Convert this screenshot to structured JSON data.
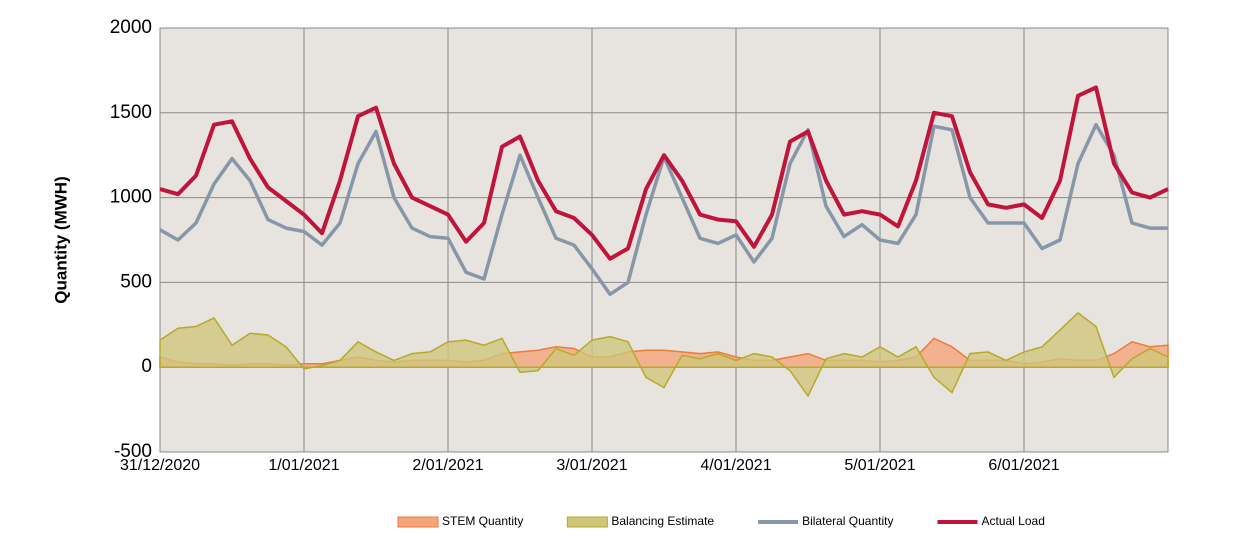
{
  "chart_data": {
    "type": "line",
    "y_label": "Quantity (MWH)",
    "x": [
      0,
      3,
      6,
      9,
      12,
      15,
      18,
      21,
      24,
      27,
      30,
      33,
      36,
      39,
      42,
      45,
      48,
      51,
      54,
      57,
      60,
      63,
      66,
      69,
      72,
      75,
      78,
      81,
      84,
      87,
      90,
      93,
      96,
      99,
      102,
      105,
      108,
      111,
      114,
      117,
      120,
      123,
      126,
      129,
      132,
      135,
      138,
      141,
      144,
      147,
      150,
      153,
      156,
      159,
      162,
      165,
      168
    ],
    "xlim": [
      0,
      168
    ],
    "xticks": [
      {
        "value": 0,
        "label": "31/12/2020"
      },
      {
        "value": 24,
        "label": "1/01/2021"
      },
      {
        "value": 48,
        "label": "2/01/2021"
      },
      {
        "value": 72,
        "label": "3/01/2021"
      },
      {
        "value": 96,
        "label": "4/01/2021"
      },
      {
        "value": 120,
        "label": "5/01/2021"
      },
      {
        "value": 144,
        "label": "6/01/2021"
      }
    ],
    "ylim": [
      -500,
      2000
    ],
    "yticks": [
      -500,
      0,
      500,
      1000,
      1500,
      2000
    ],
    "grid": true,
    "legend": "bottom",
    "series": [
      {
        "name": "STEM Quantity",
        "kind": "area",
        "color": "#ee7b3a",
        "fill": "#f5a57a",
        "values": [
          60,
          30,
          20,
          20,
          10,
          20,
          20,
          10,
          20,
          20,
          40,
          60,
          40,
          30,
          40,
          40,
          40,
          30,
          40,
          80,
          90,
          100,
          120,
          110,
          60,
          60,
          90,
          100,
          100,
          90,
          80,
          90,
          60,
          40,
          40,
          60,
          80,
          40,
          40,
          40,
          30,
          40,
          60,
          170,
          120,
          40,
          40,
          40,
          20,
          30,
          50,
          40,
          40,
          80,
          150,
          120,
          130
        ]
      },
      {
        "name": "Balancing Estimate",
        "kind": "area",
        "color": "#b5aa2a",
        "fill": "#cfc67c",
        "values": [
          160,
          230,
          240,
          290,
          130,
          200,
          190,
          120,
          -10,
          10,
          40,
          150,
          90,
          40,
          80,
          90,
          150,
          160,
          130,
          170,
          -30,
          -20,
          110,
          70,
          160,
          180,
          150,
          -60,
          -120,
          70,
          50,
          80,
          40,
          80,
          60,
          -20,
          -170,
          50,
          80,
          60,
          120,
          60,
          120,
          -60,
          -150,
          80,
          90,
          40,
          90,
          120,
          220,
          320,
          240,
          -60,
          50,
          110,
          60
        ]
      },
      {
        "name": "Bilateral Quantity",
        "kind": "line",
        "color": "#8797a9",
        "values": [
          810,
          750,
          850,
          1080,
          1230,
          1100,
          870,
          820,
          800,
          720,
          850,
          1200,
          1390,
          1000,
          820,
          770,
          760,
          560,
          520,
          900,
          1250,
          1000,
          760,
          720,
          580,
          430,
          500,
          900,
          1240,
          1000,
          760,
          730,
          780,
          620,
          760,
          1200,
          1400,
          950,
          770,
          840,
          750,
          730,
          900,
          1420,
          1400,
          1000,
          850,
          850,
          850,
          700,
          750,
          1200,
          1430,
          1250,
          850,
          820,
          820
        ]
      },
      {
        "name": "Actual Load",
        "kind": "line",
        "color": "#c0143c",
        "values": [
          1050,
          1020,
          1130,
          1430,
          1450,
          1230,
          1060,
          980,
          900,
          790,
          1100,
          1480,
          1530,
          1200,
          1000,
          950,
          900,
          740,
          850,
          1300,
          1360,
          1100,
          920,
          880,
          780,
          640,
          700,
          1050,
          1250,
          1100,
          900,
          870,
          860,
          710,
          900,
          1330,
          1390,
          1100,
          900,
          920,
          900,
          830,
          1100,
          1500,
          1480,
          1150,
          960,
          940,
          960,
          880,
          1100,
          1600,
          1650,
          1200,
          1030,
          1000,
          1050
        ]
      }
    ]
  }
}
